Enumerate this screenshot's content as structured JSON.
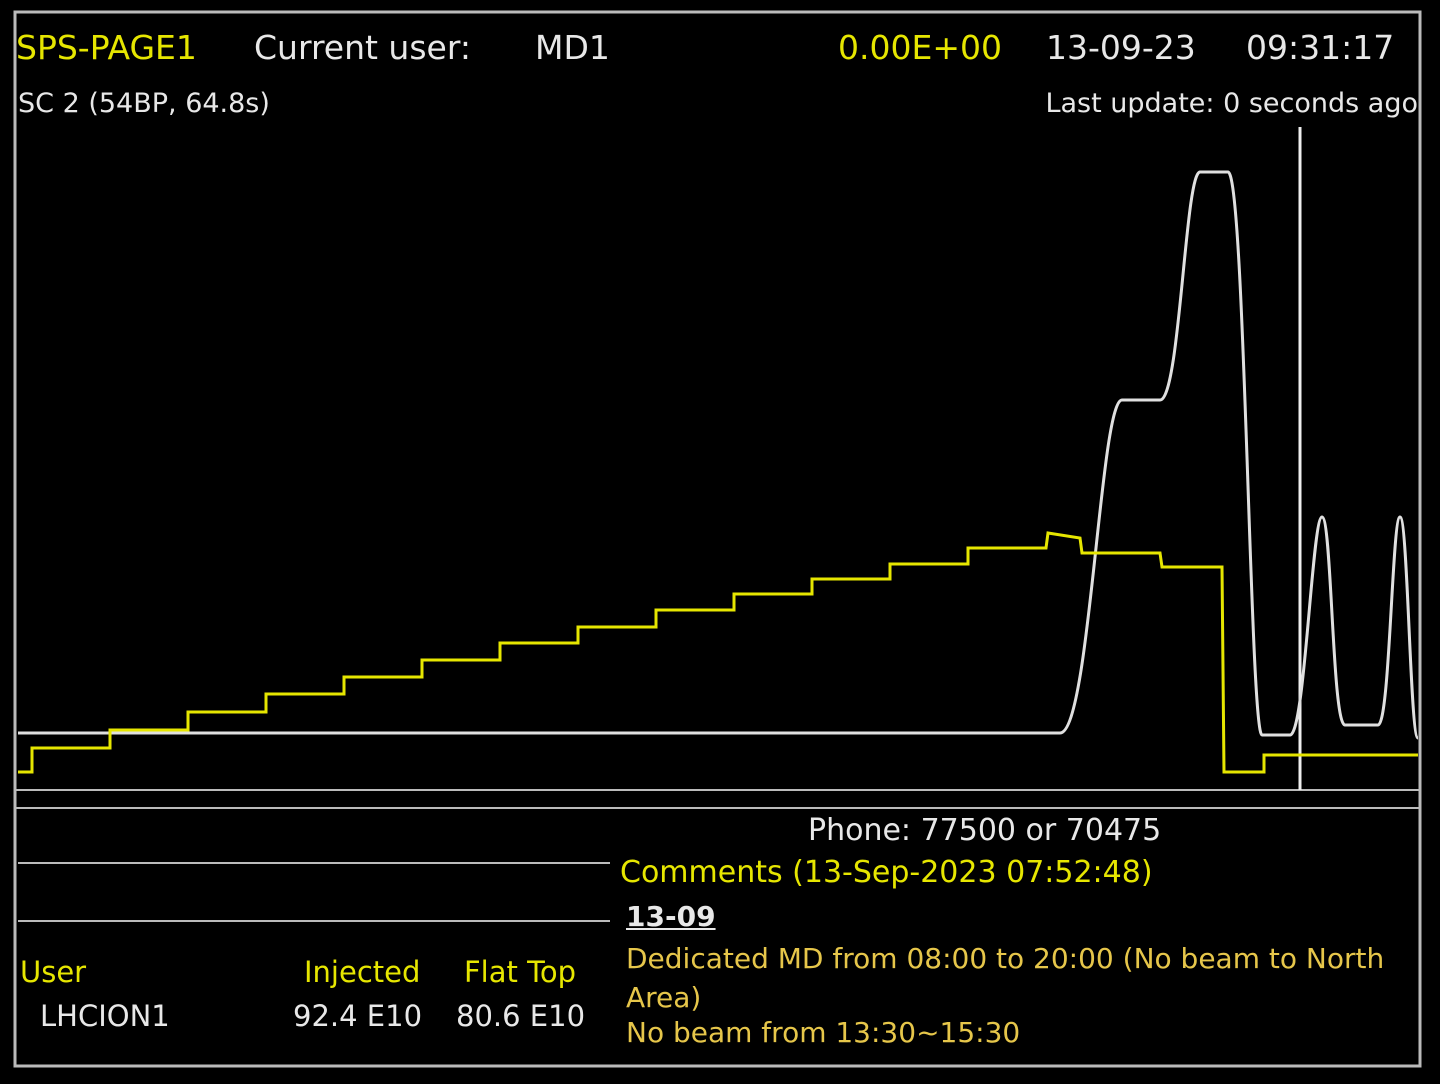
{
  "header": {
    "title": "SPS-PAGE1",
    "user_label": "Current user:",
    "user": "MD1",
    "intensity": "0.00E+00",
    "date": "13-09-23",
    "time": "09:31:17",
    "cycle": "SC 2 (54BP, 64.8s)",
    "last_update": "Last update: 0 seconds ago"
  },
  "footer": {
    "phone": "Phone: 77500 or 70475",
    "comments_title": "Comments (13-Sep-2023 07:52:48)",
    "comments": [
      "13-09",
      "Dedicated MD from 08:00 to 20:00 (No beam to North Area)",
      "No beam from 13:30~15:30"
    ],
    "table": {
      "headers": [
        "User",
        "Injected",
        "Flat Top"
      ],
      "rows": [
        [
          "LHCION1",
          "92.4 E10",
          "80.6 E10"
        ]
      ]
    }
  }
}
